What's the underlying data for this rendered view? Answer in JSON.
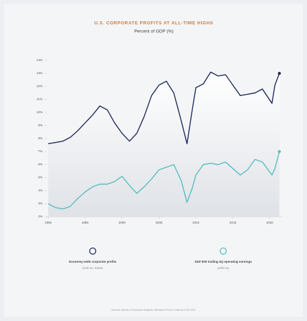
{
  "chart_data": {
    "type": "line",
    "title": "U.S. CORPORATE PROFITS AT ALL-TIME HIGHS",
    "subtitle": "Percent of GDP (%)",
    "source": "Sources: Bureau of Economic Analysis, Standard & Poor's. Data as of Q2 2021.",
    "x": [
      1990,
      1991,
      1992,
      1993,
      1994,
      1995,
      1996,
      1997,
      1998,
      1999,
      2000,
      2001,
      2002,
      2003,
      2004,
      2005,
      2006,
      2007,
      2008,
      2008.8,
      2009.5,
      2010,
      2011,
      2012,
      2013,
      2014,
      2015,
      2016,
      2017,
      2018,
      2019,
      2020.3,
      2020.7,
      2021.3
    ],
    "series": [
      {
        "name": "Economy-wide corporate profits",
        "unit": "(USD bn, SAAR)",
        "color": "#1f2a5c",
        "values": [
          7.6,
          7.7,
          7.8,
          8.1,
          8.6,
          9.2,
          9.8,
          10.5,
          10.2,
          9.2,
          8.4,
          7.8,
          8.4,
          9.7,
          11.3,
          12.1,
          12.4,
          11.5,
          9.4,
          7.6,
          10.2,
          11.9,
          12.2,
          13.1,
          12.8,
          12.9,
          12.1,
          11.3,
          11.4,
          11.5,
          11.8,
          10.7,
          12.1,
          13.0
        ]
      },
      {
        "name": "S&P 500 trailing 4Q operating earnings",
        "unit": "(USD bn)",
        "color": "#5bbcc0",
        "values": [
          3.0,
          2.7,
          2.6,
          2.8,
          3.4,
          3.9,
          4.3,
          4.5,
          4.5,
          4.7,
          5.1,
          4.4,
          3.8,
          4.3,
          4.9,
          5.6,
          5.8,
          6.0,
          4.8,
          3.1,
          4.2,
          5.2,
          6.0,
          6.1,
          6.0,
          6.2,
          5.7,
          5.2,
          5.6,
          6.4,
          6.2,
          5.2,
          5.7,
          7.0
        ]
      }
    ],
    "xlim": [
      1989.8,
      2021.6
    ],
    "xticks": [
      1990,
      1995,
      2000,
      2005,
      2010,
      2015,
      2020
    ],
    "ylim": [
      2,
      14
    ],
    "yticks": [
      {
        "value": 2,
        "label": "2%"
      },
      {
        "value": 3,
        "label": "3%"
      },
      {
        "value": 4,
        "label": "4%"
      },
      {
        "value": 5,
        "label": "5%"
      },
      {
        "value": 6,
        "label": "6%"
      },
      {
        "value": 7,
        "label": "7%"
      },
      {
        "value": 8,
        "label": "8%"
      },
      {
        "value": 9,
        "label": "9%"
      },
      {
        "value": 10,
        "label": "10%"
      },
      {
        "value": 11,
        "label": "11%"
      },
      {
        "value": 12,
        "label": "12%"
      },
      {
        "value": 13,
        "label": "13%"
      },
      {
        "value": 14,
        "label": "14%"
      }
    ]
  }
}
